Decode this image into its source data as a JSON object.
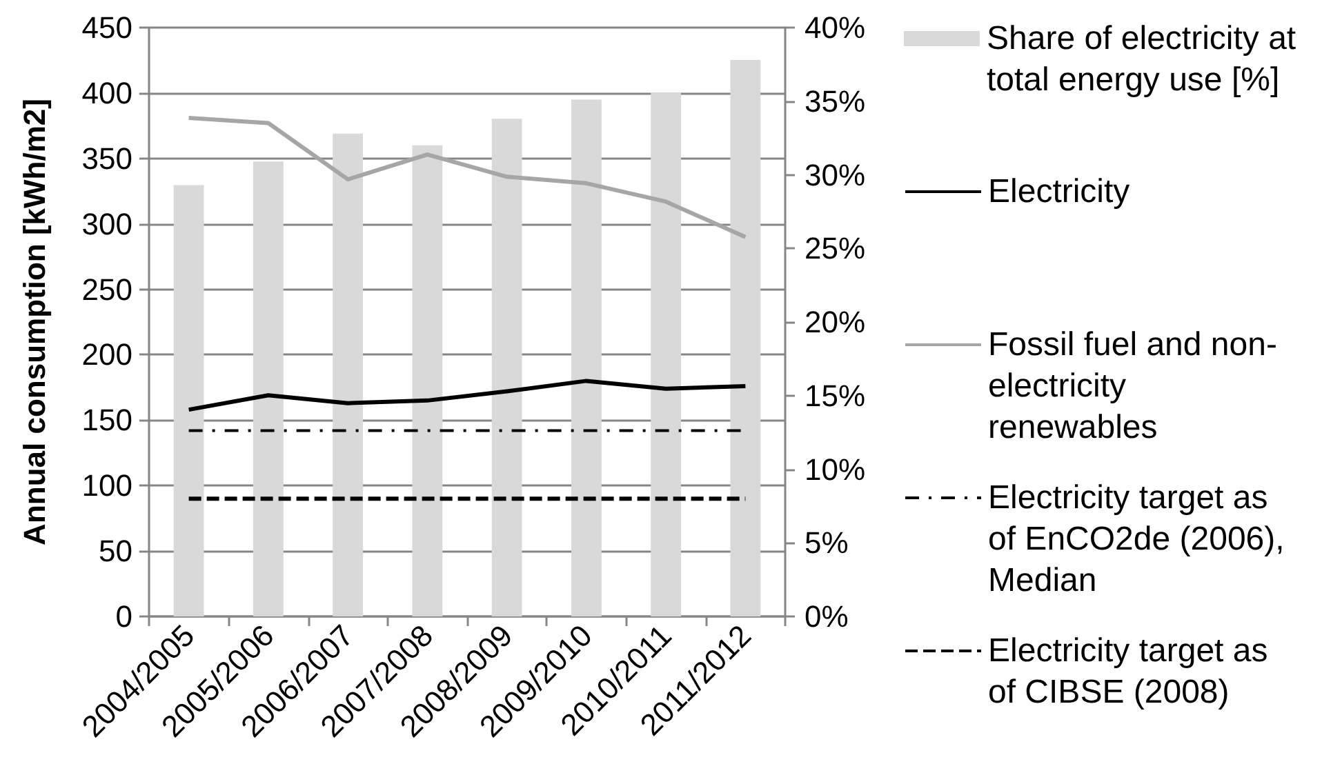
{
  "chart_data": {
    "type": "bar",
    "categories": [
      "2004/2005",
      "2005/2006",
      "2006/2007",
      "2007/2008",
      "2008/2009",
      "2009/2010",
      "2010/2011",
      "2011/2012"
    ],
    "ylabel": "Annual consumption [kWh/m2]",
    "ylim": [
      0,
      450
    ],
    "yticks": [
      0,
      50,
      100,
      150,
      200,
      250,
      300,
      350,
      400,
      450
    ],
    "y2lim": [
      0,
      40
    ],
    "y2ticks": [
      {
        "value": 0,
        "label": "0%"
      },
      {
        "value": 5,
        "label": "5%"
      },
      {
        "value": 10,
        "label": "10%"
      },
      {
        "value": 15,
        "label": "15%"
      },
      {
        "value": 20,
        "label": "20%"
      },
      {
        "value": 25,
        "label": "25%"
      },
      {
        "value": 30,
        "label": "30%"
      },
      {
        "value": 35,
        "label": "35%"
      },
      {
        "value": 40,
        "label": "40%"
      }
    ],
    "series": [
      {
        "name": "Share of electricity at total energy use [%]",
        "axis": "y2",
        "color": "#d9d9d9",
        "values": [
          29.3,
          30.9,
          32.8,
          32.0,
          33.8,
          35.1,
          35.6,
          37.8
        ]
      },
      {
        "name": "Electricity",
        "type": "line",
        "color": "#000000",
        "line_style": "solid",
        "values": [
          158,
          169,
          163,
          165,
          172,
          180,
          174,
          176
        ]
      },
      {
        "name": "Fossil fuel and non-electricity renewables",
        "type": "line",
        "color": "#a6a6a6",
        "line_style": "solid",
        "values": [
          381,
          377,
          334,
          353,
          336,
          331,
          317,
          290
        ]
      },
      {
        "name": "Electricity target as of EnCO2de (2006), Median",
        "type": "line",
        "color": "#000000",
        "line_style": "dashdot",
        "values": [
          142,
          142,
          142,
          142,
          142,
          142,
          142,
          142
        ]
      },
      {
        "name": "Electricity target as of CIBSE (2008)",
        "type": "line",
        "color": "#000000",
        "line_style": "dashed",
        "values": [
          90,
          90,
          90,
          90,
          90,
          90,
          90,
          90
        ]
      }
    ],
    "grid": "y",
    "legend": "right",
    "marker": "none"
  }
}
